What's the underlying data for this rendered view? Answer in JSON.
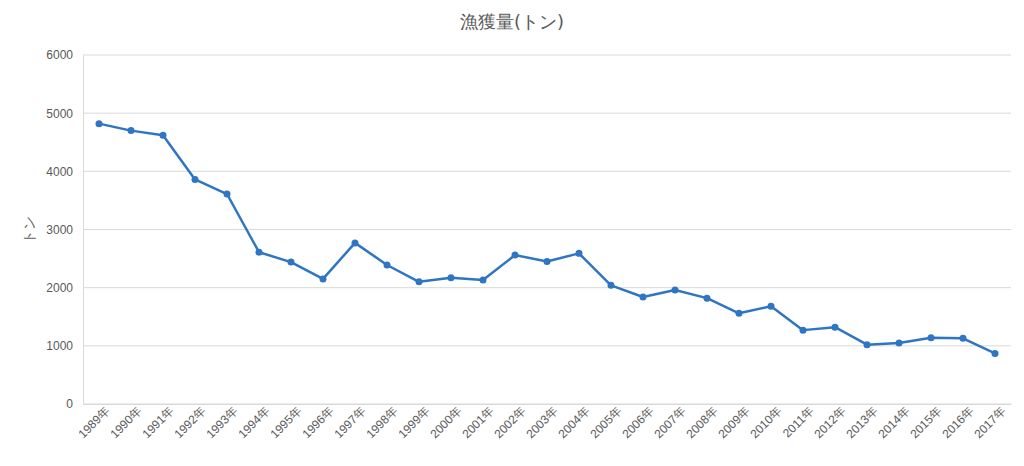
{
  "chart_data": {
    "type": "line",
    "title": "漁獲量(トン)",
    "y_label": "トン",
    "categories": [
      "1989年",
      "1990年",
      "1991年",
      "1992年",
      "1993年",
      "1994年",
      "1995年",
      "1996年",
      "1997年",
      "1998年",
      "1999年",
      "2000年",
      "2001年",
      "2002年",
      "2003年",
      "2004年",
      "2005年",
      "2006年",
      "2007年",
      "2008年",
      "2009年",
      "2010年",
      "2011年",
      "2012年",
      "2013年",
      "2014年",
      "2015年",
      "2016年",
      "2017年"
    ],
    "values": [
      4820,
      4700,
      4620,
      3860,
      3610,
      2610,
      2440,
      2150,
      2770,
      2390,
      2100,
      2170,
      2130,
      2560,
      2450,
      2590,
      2040,
      1840,
      1960,
      1820,
      1560,
      1680,
      1270,
      1320,
      1020,
      1050,
      1140,
      1130,
      870
    ],
    "color": "#2e75c4",
    "marker": "circle",
    "line_style": "solid",
    "ylim": [
      0,
      6000
    ],
    "yticks": [
      0,
      1000,
      2000,
      3000,
      4000,
      5000,
      6000
    ],
    "grid": true
  }
}
